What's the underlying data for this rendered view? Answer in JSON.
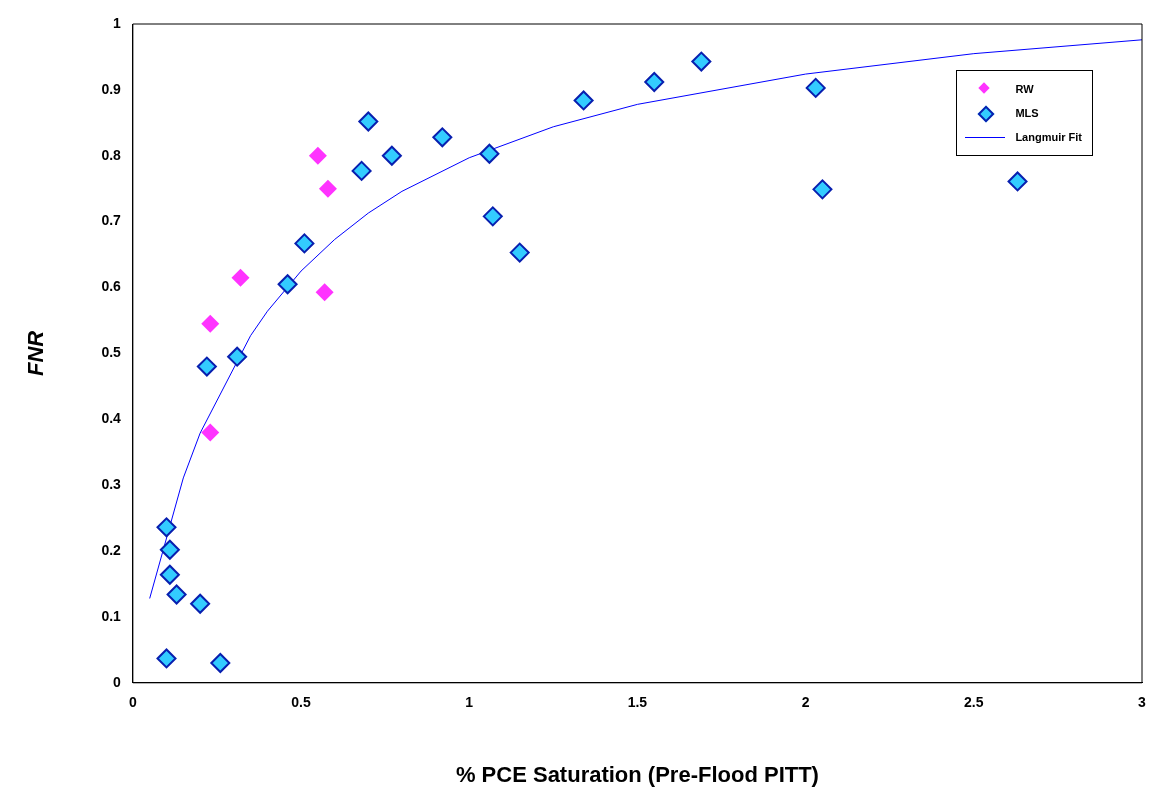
{
  "chart_data": {
    "type": "scatter",
    "xlabel": "% PCE Saturation (Pre-Flood PITT)",
    "ylabel": "FNR",
    "xlim": [
      0,
      3
    ],
    "xticks": [
      0,
      0.5,
      1,
      1.5,
      2,
      2.5,
      3
    ],
    "ylim": [
      0,
      1
    ],
    "yticks": [
      0,
      0.1,
      0.2,
      0.3,
      0.4,
      0.5,
      0.6,
      0.7,
      0.8,
      0.9,
      1
    ],
    "grid": false,
    "legend": "top right",
    "marker": "diamond",
    "series": [
      {
        "name": "RW",
        "color": "#ff33ff",
        "x": [
          0.23,
          0.32,
          0.23,
          0.55,
          0.58,
          0.57
        ],
        "values": [
          0.545,
          0.615,
          0.38,
          0.8,
          0.75,
          0.593
        ]
      },
      {
        "name": "MLS",
        "color": "#33ccff",
        "x": [
          0.1,
          0.11,
          0.11,
          0.13,
          0.2,
          0.1,
          0.26,
          0.22,
          0.31,
          0.46,
          0.51,
          0.68,
          0.7,
          0.77,
          0.92,
          1.06,
          1.07,
          1.15,
          1.34,
          1.55,
          1.69,
          2.03,
          2.05,
          2.63
        ],
        "values": [
          0.236,
          0.202,
          0.164,
          0.134,
          0.12,
          0.037,
          0.03,
          0.48,
          0.495,
          0.605,
          0.667,
          0.777,
          0.852,
          0.8,
          0.828,
          0.803,
          0.708,
          0.653,
          0.884,
          0.912,
          0.943,
          0.903,
          0.749,
          0.761
        ]
      },
      {
        "name": "Langmuir Fit",
        "type": "line",
        "color": "#0000ff",
        "marker": "none",
        "x": [
          0.05,
          0.15,
          0.2,
          0.35,
          0.4,
          0.5,
          0.6,
          0.7,
          0.8,
          1,
          1.25,
          1.5,
          2,
          2.5,
          3
        ],
        "values": [
          0.128,
          0.311,
          0.379,
          0.527,
          0.564,
          0.625,
          0.673,
          0.713,
          0.746,
          0.797,
          0.844,
          0.878,
          0.924,
          0.955,
          0.976
        ]
      }
    ]
  }
}
